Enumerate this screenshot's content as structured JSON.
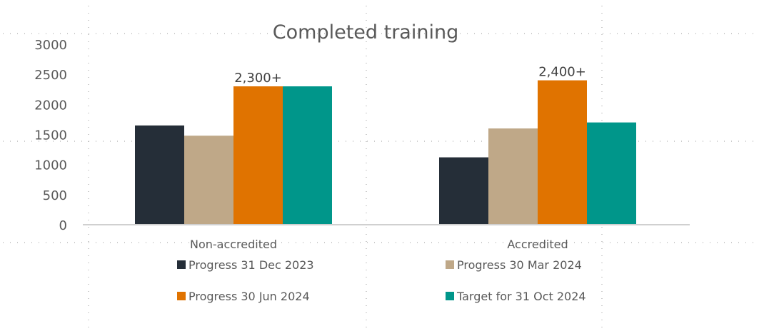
{
  "chart_data": {
    "type": "bar",
    "title": "Completed training",
    "xlabel": "",
    "ylabel": "",
    "ylim": [
      0,
      3000
    ],
    "yticks": [
      0,
      500,
      1000,
      1500,
      2000,
      2500,
      3000
    ],
    "categories": [
      "Non-accredited",
      "Accredited"
    ],
    "series": [
      {
        "name": "Progress 31 Dec 2023",
        "color": "#252e38",
        "values": [
          1650,
          1120
        ]
      },
      {
        "name": "Progress 30 Mar 2024",
        "color": "#bfa888",
        "values": [
          1480,
          1600
        ]
      },
      {
        "name": "Progress 30 Jun 2024",
        "color": "#e07300",
        "values": [
          2300,
          2400
        ]
      },
      {
        "name": "Target for 31 Oct 2024",
        "color": "#00968a",
        "values": [
          2300,
          1700
        ]
      }
    ],
    "data_labels": [
      {
        "series": 2,
        "category": 0,
        "text": "2,300+"
      },
      {
        "series": 2,
        "category": 1,
        "text": "2,400+"
      }
    ],
    "legend_position": "bottom",
    "grid": false
  }
}
